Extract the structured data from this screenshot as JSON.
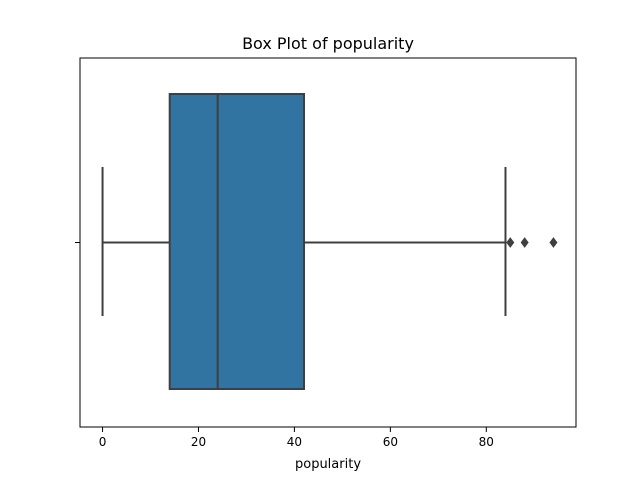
{
  "chart_data": {
    "type": "box",
    "title": "Box Plot of popularity",
    "xlabel": "popularity",
    "ylabel": "",
    "orientation": "horizontal",
    "xlim": [
      -4.7,
      98.7
    ],
    "xticks": [
      0,
      20,
      40,
      60,
      80
    ],
    "xtick_labels": [
      "0",
      "20",
      "40",
      "60",
      "80"
    ],
    "grid": false,
    "series": [
      {
        "whisker_low": 0,
        "q1": 14,
        "median": 24,
        "q3": 42,
        "whisker_high": 84,
        "outliers": [
          85,
          88,
          94
        ],
        "color": "#3274a1",
        "line_color": "#3f3f3f"
      }
    ]
  }
}
